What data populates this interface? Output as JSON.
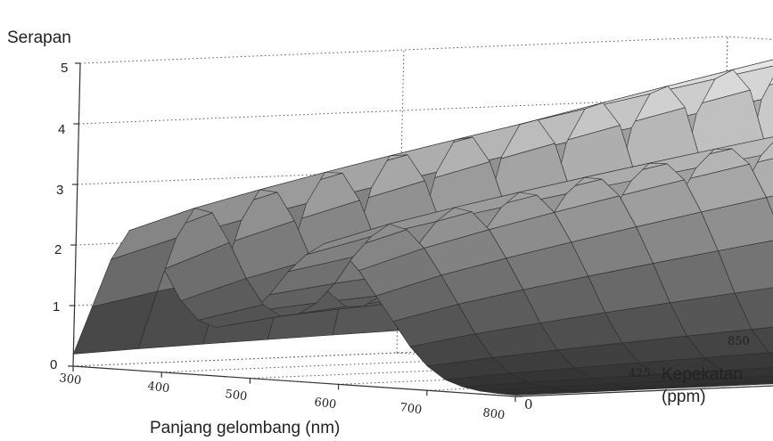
{
  "chart_data": {
    "type": "surface",
    "zlabel": "Serapan",
    "xlabel": "Panjang gelombang (nm)",
    "ylabel_line1": "Kepekatan",
    "ylabel_line2": "(ppm)",
    "x_ticks": [
      "300",
      "400",
      "500",
      "600",
      "700",
      "800"
    ],
    "y_ticks": [
      "0",
      "425",
      "850"
    ],
    "z_ticks": [
      "0",
      "1",
      "2",
      "3",
      "4",
      "5"
    ],
    "xlim": [
      300,
      800
    ],
    "ylim": [
      0,
      850
    ],
    "zlim": [
      0,
      5
    ],
    "grid": true,
    "wavelength_nm": [
      300,
      320,
      340,
      360,
      380,
      400,
      420,
      440,
      460,
      480,
      500,
      520,
      540,
      560,
      580,
      600,
      620,
      640,
      660,
      680,
      700,
      720,
      740,
      760,
      780,
      800
    ],
    "concentration_ppm": [
      0,
      85,
      170,
      255,
      340,
      425,
      510,
      595,
      680,
      765,
      850
    ],
    "absorbance_at_0_ppm": [
      0.2,
      1.0,
      1.8,
      2.3,
      2.2,
      1.7,
      1.2,
      0.9,
      0.8,
      0.9,
      1.1,
      1.4,
      1.8,
      2.1,
      2.3,
      2.2,
      1.9,
      1.5,
      1.1,
      0.7,
      0.4,
      0.2,
      0.1,
      0.05,
      0.03,
      0.02
    ],
    "absorbance_at_850_ppm": [
      0.5,
      2.5,
      4.0,
      4.6,
      4.8,
      4.5,
      3.5,
      2.4,
      1.8,
      1.6,
      1.8,
      2.4,
      3.2,
      3.9,
      4.3,
      4.4,
      4.2,
      3.6,
      2.8,
      1.9,
      1.1,
      0.6,
      0.3,
      0.15,
      0.08,
      0.05
    ]
  }
}
